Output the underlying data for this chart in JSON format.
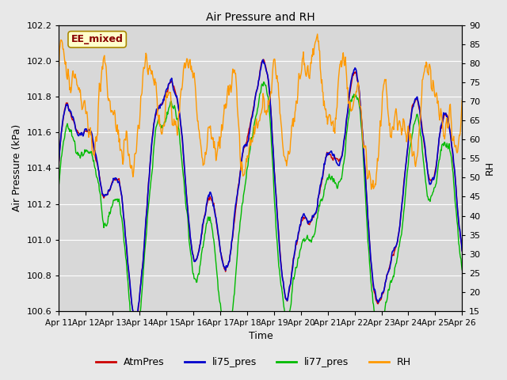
{
  "title": "Air Pressure and RH",
  "xlabel": "Time",
  "ylabel_left": "Air Pressure (kPa)",
  "ylabel_right": "RH",
  "ylim_left": [
    100.6,
    102.2
  ],
  "ylim_right": [
    15,
    90
  ],
  "yticks_left": [
    100.6,
    100.8,
    101.0,
    101.2,
    101.4,
    101.6,
    101.8,
    102.0,
    102.2
  ],
  "yticks_right": [
    15,
    20,
    25,
    30,
    35,
    40,
    45,
    50,
    55,
    60,
    65,
    70,
    75,
    80,
    85,
    90
  ],
  "xtick_labels": [
    "Apr 11",
    "Apr 12",
    "Apr 13",
    "Apr 14",
    "Apr 15",
    "Apr 16",
    "Apr 17",
    "Apr 18",
    "Apr 19",
    "Apr 20",
    "Apr 21",
    "Apr 22",
    "Apr 23",
    "Apr 24",
    "Apr 25",
    "Apr 26"
  ],
  "annotation_text": "EE_mixed",
  "colors": {
    "AtmPres": "#cc0000",
    "li75_pres": "#0000cc",
    "li77_pres": "#00bb00",
    "RH": "#ff9900"
  },
  "legend_labels": [
    "AtmPres",
    "li75_pres",
    "li77_pres",
    "RH"
  ],
  "fig_bg_color": "#e8e8e8",
  "plot_bg_color": "#d8d8d8",
  "grid_color": "#ffffff"
}
